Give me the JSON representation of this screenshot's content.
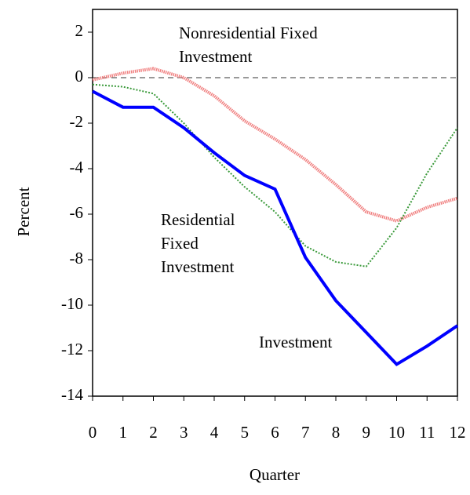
{
  "chart_data": {
    "type": "line",
    "x_label": "Quarter",
    "y_label": "Percent",
    "x": [
      0,
      1,
      2,
      3,
      4,
      5,
      6,
      7,
      8,
      9,
      10,
      11,
      12
    ],
    "xlim": [
      0,
      12
    ],
    "xticks": [
      0,
      1,
      2,
      3,
      4,
      5,
      6,
      7,
      8,
      9,
      10,
      11,
      12
    ],
    "ylim": [
      -14,
      3
    ],
    "yticks": [
      -14,
      -12,
      -10,
      -8,
      -6,
      -4,
      -2,
      0,
      2
    ],
    "zero_line": true,
    "series": [
      {
        "label": [
          "Nonresidential Fixed",
          "Investment"
        ],
        "color": "#f08080",
        "style": "dotted",
        "values": [
          -0.1,
          0.2,
          0.4,
          0.0,
          -0.8,
          -1.9,
          -2.7,
          -3.6,
          -4.7,
          -5.9,
          -6.3,
          -5.7,
          -5.3
        ]
      },
      {
        "label": [
          "Residential",
          "Fixed",
          "Investment"
        ],
        "color": "#3a9a3a",
        "style": "dotted",
        "values": [
          -0.3,
          -0.4,
          -0.7,
          -2.0,
          -3.5,
          -4.8,
          -5.9,
          -7.4,
          -8.1,
          -8.3,
          -6.6,
          -4.2,
          -2.2
        ]
      },
      {
        "label": [
          "Investment"
        ],
        "color": "#0000ff",
        "style": "solid",
        "values": [
          -0.6,
          -1.3,
          -1.3,
          -2.2,
          -3.3,
          -4.3,
          -4.9,
          -7.9,
          -9.8,
          -11.2,
          -12.6,
          -11.8,
          -10.9
        ]
      }
    ]
  }
}
